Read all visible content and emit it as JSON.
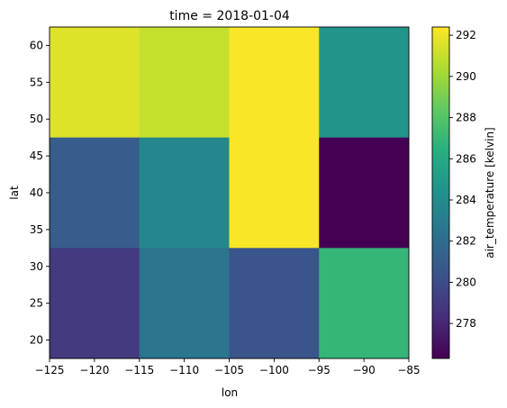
{
  "chart_data": {
    "type": "heatmap",
    "title": "time = 2018-01-04",
    "xlabel": "lon",
    "ylabel": "lat",
    "xlim": [
      -125,
      -85
    ],
    "ylim": [
      17.5,
      62.5
    ],
    "x_edges": [
      -125,
      -115,
      -105,
      -95,
      -85
    ],
    "y_edges": [
      17.5,
      32.5,
      47.5,
      62.5
    ],
    "x_ticks": [
      -125,
      -120,
      -115,
      -110,
      -105,
      -100,
      -95,
      -90,
      -85
    ],
    "x_tick_labels": [
      "−125",
      "−120",
      "−115",
      "−110",
      "−105",
      "−100",
      "−95",
      "−90",
      "−85"
    ],
    "y_ticks": [
      20,
      25,
      30,
      35,
      40,
      45,
      50,
      55,
      60
    ],
    "y_tick_labels": [
      "20",
      "25",
      "30",
      "35",
      "40",
      "45",
      "50",
      "55",
      "60"
    ],
    "rows_top_to_bottom": [
      [
        291.6,
        291.0,
        292.3,
        284.6
      ],
      [
        281.0,
        283.7,
        292.3,
        276.3
      ],
      [
        279.0,
        282.5,
        280.5,
        286.9
      ]
    ],
    "colorbar": {
      "label": "air_temperature [kelvin]",
      "vmin": 276.3,
      "vmax": 292.4,
      "ticks": [
        278,
        280,
        282,
        284,
        286,
        288,
        290,
        292
      ],
      "tick_labels": [
        "278",
        "280",
        "282",
        "284",
        "286",
        "288",
        "290",
        "292"
      ],
      "colormap": "viridis"
    }
  }
}
